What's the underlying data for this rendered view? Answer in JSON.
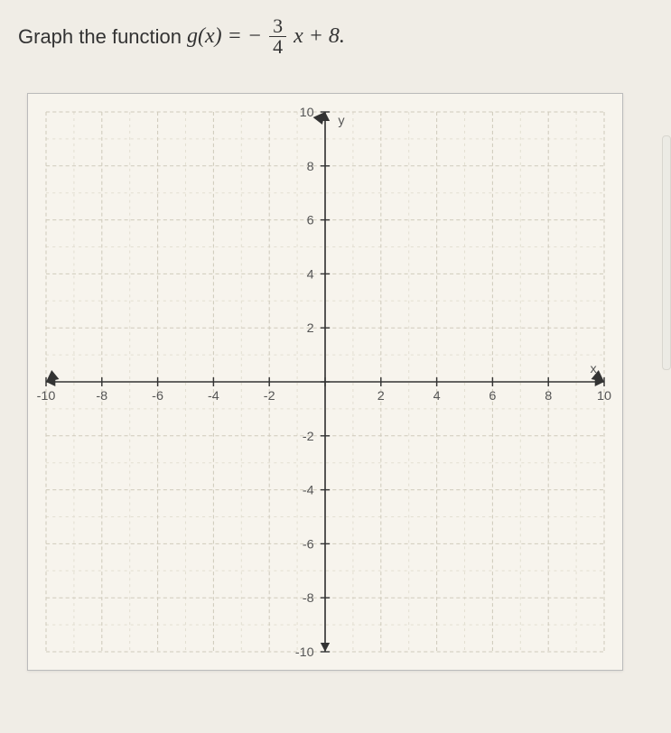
{
  "prompt": {
    "prefix": "Graph the function ",
    "func_name": "g",
    "var": "x",
    "equals": "= −",
    "numerator": "3",
    "denominator": "4",
    "tail": "x + 8."
  },
  "chart": {
    "type": "line",
    "background_color": "#f7f4ed",
    "grid_major_color": "#cfcabb",
    "grid_minor_color": "#e3dfd2",
    "axis_color": "#333333",
    "tick_label_color": "#555555",
    "tick_fontsize": 14,
    "xlim": [
      -10,
      10
    ],
    "ylim": [
      -10,
      10
    ],
    "xtick_step": 2,
    "ytick_step": 2,
    "minor_step": 1,
    "x_axis_label": "x",
    "y_axis_label": "y",
    "x_tick_labels": [
      "-10",
      "-8",
      "-6",
      "-4",
      "-2",
      "2",
      "4",
      "6",
      "8",
      "10"
    ],
    "y_tick_labels": [
      "10",
      "8",
      "6",
      "4",
      "2",
      "-2",
      "-4",
      "-6",
      "-8",
      "-10"
    ],
    "series": []
  }
}
